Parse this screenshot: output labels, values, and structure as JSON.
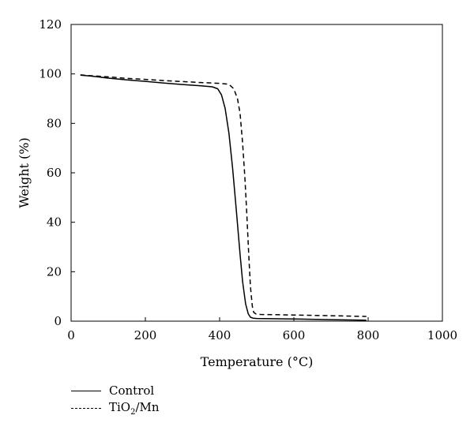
{
  "chart_data": {
    "type": "line",
    "xlabel": "Temperature (°C)",
    "ylabel": "Weight (%)",
    "xlim": [
      0,
      1000
    ],
    "ylim": [
      0,
      120
    ],
    "xticks": [
      0,
      200,
      400,
      600,
      800,
      1000
    ],
    "yticks": [
      0,
      20,
      40,
      60,
      80,
      100,
      120
    ],
    "grid": false,
    "legend_position": "bottom-left",
    "series": [
      {
        "name": "Control",
        "style": "solid",
        "color": "#000000",
        "x": [
          25,
          50,
          100,
          150,
          200,
          250,
          300,
          350,
          380,
          395,
          405,
          415,
          425,
          435,
          445,
          455,
          462,
          470,
          477,
          483,
          490,
          500,
          600,
          700,
          795
        ],
        "y": [
          99.5,
          99.2,
          98.3,
          97.6,
          97.0,
          96.3,
          95.7,
          95.2,
          94.8,
          94.0,
          91.5,
          86,
          76,
          62,
          45,
          27,
          16,
          7,
          3,
          1.6,
          1.2,
          1.1,
          0.9,
          0.6,
          0.4
        ]
      },
      {
        "name": "TiO₂/Mn",
        "style": "dashed",
        "color": "#000000",
        "x": [
          25,
          50,
          100,
          150,
          200,
          250,
          300,
          350,
          400,
          425,
          438,
          448,
          455,
          462,
          468,
          473,
          478,
          483,
          488,
          492,
          498,
          510,
          600,
          700,
          795
        ],
        "y": [
          99.6,
          99.3,
          98.8,
          98.2,
          97.8,
          97.3,
          96.9,
          96.5,
          96.2,
          95.8,
          94.0,
          90.0,
          84.0,
          72.0,
          58.0,
          44.0,
          28.0,
          14.0,
          6.0,
          3.5,
          2.9,
          2.7,
          2.5,
          2.2,
          1.9
        ]
      }
    ]
  },
  "legend": {
    "items": [
      {
        "label_main": "Control",
        "label_sub": "",
        "label_tail": ""
      },
      {
        "label_main": "TiO",
        "label_sub": "2",
        "label_tail": "/Mn"
      }
    ]
  }
}
